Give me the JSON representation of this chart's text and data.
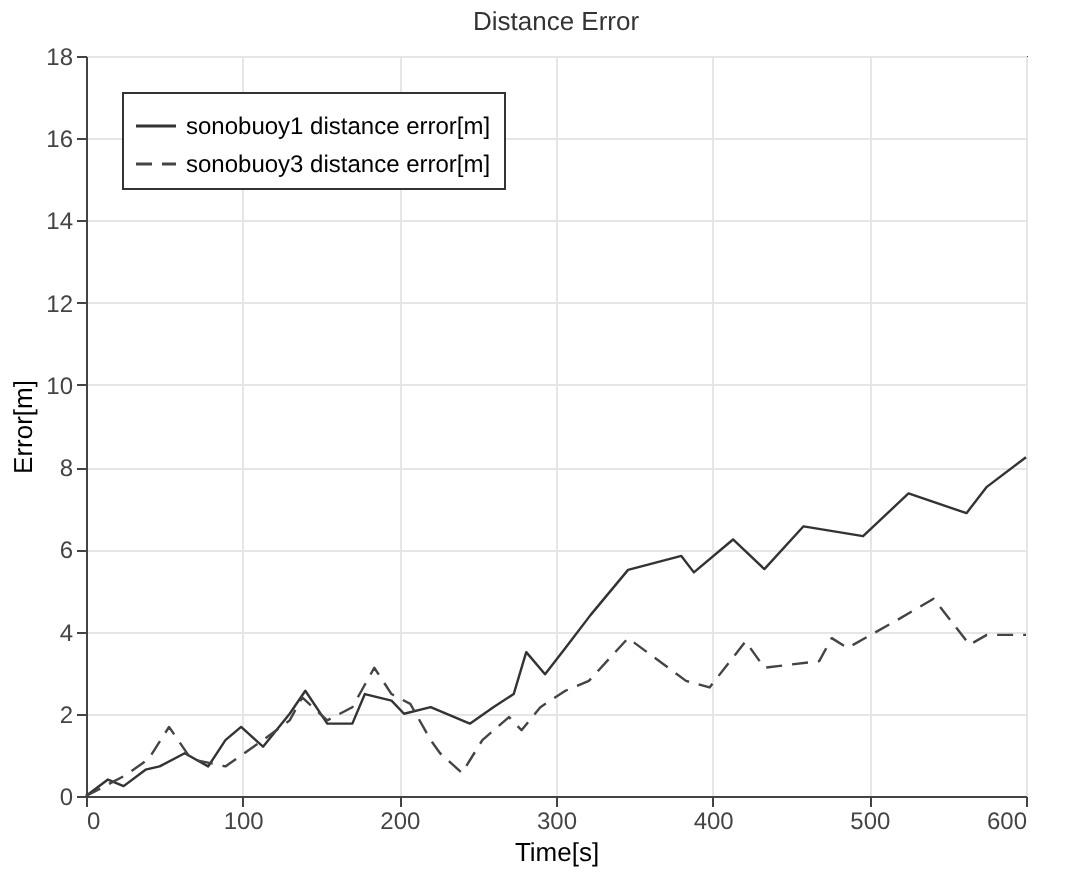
{
  "chart_data": {
    "type": "line",
    "title": "Distance Error",
    "xlabel": "Time[s]",
    "ylabel": "Error[m]",
    "xlim": [
      0,
      600
    ],
    "xticks": [
      0,
      100,
      200,
      300,
      400,
      500,
      600
    ],
    "ylim": [
      0,
      18
    ],
    "yticks": [
      0,
      2,
      4,
      6,
      8,
      10,
      12,
      14,
      16,
      18
    ],
    "grid": true,
    "legend": "top left",
    "series": [
      {
        "name": "sonobuoy1 distance error[m]",
        "color": "#333333",
        "line_style": "solid",
        "x": [
          0,
          14,
          24,
          38,
          47,
          63,
          78,
          89,
          99,
          113,
          130,
          140,
          154,
          170,
          178,
          195,
          203,
          220,
          245,
          260,
          273,
          281,
          293,
          306,
          322,
          346,
          380,
          388,
          413,
          433,
          458,
          496,
          525,
          562,
          575,
          600
        ],
        "values": [
          0,
          0.4,
          0.24,
          0.64,
          0.72,
          1.04,
          0.72,
          1.36,
          1.68,
          1.2,
          2.0,
          2.56,
          1.76,
          1.76,
          2.48,
          2.32,
          2.0,
          2.16,
          1.76,
          2.16,
          2.48,
          3.5,
          2.96,
          3.6,
          4.4,
          5.5,
          5.84,
          5.44,
          6.24,
          5.52,
          6.56,
          6.32,
          7.36,
          6.88,
          7.52,
          8.24
        ]
      },
      {
        "name": "sonobuoy3 distance error[m]",
        "color": "#444444",
        "line_style": "dashed",
        "x": [
          0,
          10,
          25,
          40,
          53,
          67,
          89,
          113,
          130,
          138,
          154,
          170,
          184,
          195,
          207,
          220,
          226,
          240,
          253,
          270,
          278,
          290,
          306,
          321,
          346,
          383,
          398,
          421,
          433,
          468,
          476,
          486,
          516,
          541,
          564,
          575,
          600
        ],
        "values": [
          0,
          0.2,
          0.5,
          0.9,
          1.68,
          0.9,
          0.72,
          1.36,
          1.84,
          2.4,
          1.84,
          2.16,
          3.12,
          2.48,
          2.24,
          1.36,
          1.04,
          0.56,
          1.36,
          1.92,
          1.6,
          2.16,
          2.56,
          2.8,
          3.84,
          2.8,
          2.64,
          3.76,
          3.12,
          3.28,
          3.84,
          3.6,
          4.24,
          4.8,
          3.68,
          3.92,
          3.92
        ]
      }
    ]
  }
}
